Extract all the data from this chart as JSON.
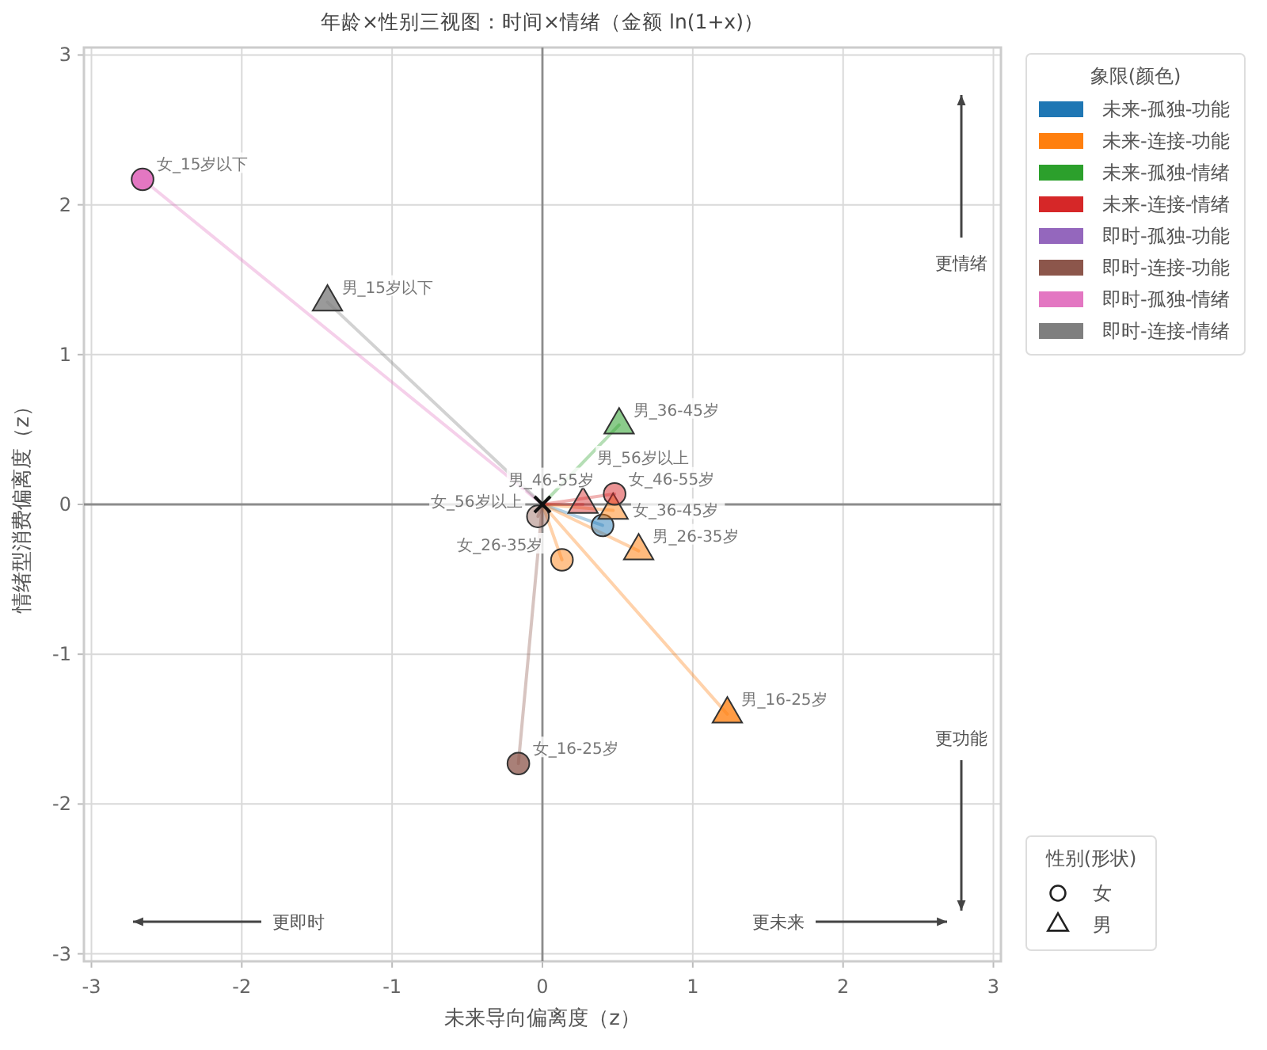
{
  "chart_data": {
    "type": "scatter",
    "title": "年龄×性别三视图：时间×情绪（金额 ln(1+x)）",
    "xlabel": "未来导向偏离度（z）",
    "ylabel": "情绪型消费偏离度（z）",
    "xlim": [
      -3.05,
      3.05
    ],
    "ylim": [
      -3.05,
      3.05
    ],
    "xticks": [
      -3,
      -2,
      -1,
      0,
      1,
      2,
      3
    ],
    "yticks": [
      -3,
      -2,
      -1,
      0,
      1,
      2,
      3
    ],
    "grid": true,
    "legend": "top right",
    "legend_title": "象限(颜色)",
    "annotations": [
      "更情绪",
      "更功能",
      "更即时",
      "更未来",
      "性别(形状)",
      "女",
      "男",
      {
        "text": "女_36-45岁",
        "x": 0.4,
        "y": -0.14
      },
      {
        "text": "男_46-55岁",
        "x": 0.47,
        "y": -0.04
      },
      {
        "text": "男_26-35岁",
        "x": 0.64,
        "y": -0.31
      },
      {
        "text": "男_16-25岁",
        "x": 1.23,
        "y": -1.4
      },
      {
        "text": "女_26-35岁",
        "x": 0.13,
        "y": -0.37
      },
      {
        "text": "男_36-45岁",
        "x": 0.51,
        "y": 0.53
      },
      {
        "text": "女_46-55岁",
        "x": 0.48,
        "y": 0.07
      },
      {
        "text": "男_56岁以上",
        "x": 0.27,
        "y": 0.0
      },
      {
        "text": "女_56岁以上",
        "x": -0.03,
        "y": -0.08
      },
      {
        "text": "女_16-25岁",
        "x": -0.16,
        "y": -1.73
      },
      {
        "text": "女_15岁以下",
        "x": -2.66,
        "y": 2.17
      },
      {
        "text": "男_15岁以下",
        "x": -1.43,
        "y": 1.35
      }
    ],
    "series": [
      {
        "name": "未来-孤独-功能",
        "color": "#1f77b4",
        "marker": "circle",
        "x": [
          0.4
        ],
        "values": [
          -0.14
        ]
      },
      {
        "name": "未来-连接-功能",
        "color": "#ff7f0e",
        "marker": "triangle",
        "x": [
          0.47,
          0.64,
          1.23
        ],
        "values": [
          -0.04,
          -0.31,
          -1.4
        ]
      },
      {
        "color": "#ff7f0e",
        "marker": "circle",
        "x": [
          0.13
        ],
        "values": [
          -0.37
        ]
      },
      {
        "name": "未来-孤独-情绪",
        "color": "#2ca02c",
        "marker": "triangle",
        "x": [
          0.51
        ],
        "values": [
          0.53
        ]
      },
      {
        "name": "未来-连接-情绪",
        "color": "#d62728",
        "marker": "circle",
        "x": [
          0.48
        ],
        "values": [
          0.07
        ]
      },
      {
        "color": "#d62728",
        "marker": "triangle",
        "x": [
          0.27
        ],
        "values": [
          0.0
        ]
      },
      {
        "name": "即时-孤独-功能",
        "color": "#9467bd"
      },
      {
        "name": "即时-连接-功能",
        "color": "#8c564b",
        "marker": "circle",
        "x": [
          -0.03,
          -0.16
        ],
        "values": [
          -0.08,
          -1.73
        ]
      },
      {
        "name": "即时-孤独-情绪",
        "color": "#e377c2",
        "marker": "circle",
        "x": [
          -2.66
        ],
        "values": [
          2.17
        ]
      },
      {
        "name": "即时-连接-情绪",
        "color": "#7f7f7f",
        "marker": "triangle",
        "x": [
          -1.43
        ],
        "values": [
          1.35
        ]
      }
    ]
  }
}
